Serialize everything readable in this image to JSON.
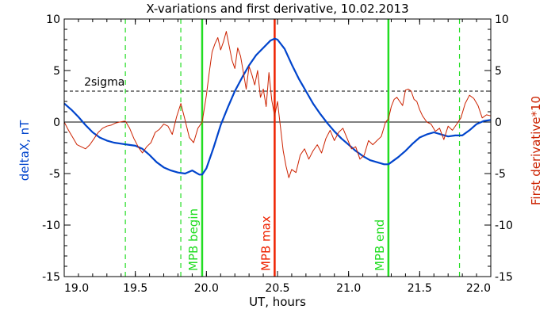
{
  "chart_data": {
    "type": "line",
    "title": "X-variations and first derivative, 10.02.2013",
    "xlabel": "UT, hours",
    "ylabel_left": "deltaX, nT",
    "ylabel_right": "First derivative*10",
    "xlim": [
      19.0,
      22.0
    ],
    "ylim": [
      -15,
      10
    ],
    "x_ticks": [
      "19.0",
      "19.5",
      "20.0",
      "20.5",
      "21.0",
      "21.5",
      "22.0"
    ],
    "x_tick_values": [
      19.0,
      19.5,
      20.0,
      20.5,
      21.0,
      21.5,
      22.0
    ],
    "y_ticks": [
      "10",
      "5",
      "0",
      "-5",
      "-10",
      "-15"
    ],
    "y_tick_values": [
      10,
      5,
      0,
      -5,
      -10,
      -15
    ],
    "colors": {
      "deltaX": "#0044cc",
      "derivative": "#cc2200",
      "mpb": "#22dd22",
      "max": "#ee2200",
      "sigma": "#000000",
      "zero": "#000000"
    },
    "sigma": {
      "value": 3.0,
      "label": "2sigma"
    },
    "zero_line": 0,
    "vlines": [
      {
        "x": 19.43,
        "style": "dashed",
        "color_key": "mpb",
        "label": ""
      },
      {
        "x": 19.82,
        "style": "dashed",
        "color_key": "mpb",
        "label": ""
      },
      {
        "x": 19.97,
        "style": "solid",
        "color_key": "mpb",
        "label": "MPB begin"
      },
      {
        "x": 20.48,
        "style": "solid",
        "color_key": "max",
        "label": "MPB max"
      },
      {
        "x": 21.28,
        "style": "solid",
        "color_key": "mpb",
        "label": "MPB end"
      },
      {
        "x": 21.78,
        "style": "dashed",
        "color_key": "mpb",
        "label": ""
      }
    ],
    "series": [
      {
        "key": "deltaX",
        "x": [
          19.0,
          19.05,
          19.1,
          19.15,
          19.2,
          19.25,
          19.3,
          19.35,
          19.4,
          19.45,
          19.5,
          19.55,
          19.6,
          19.65,
          19.7,
          19.75,
          19.8,
          19.85,
          19.9,
          19.95,
          19.97,
          20.0,
          20.05,
          20.1,
          20.15,
          20.2,
          20.25,
          20.3,
          20.35,
          20.4,
          20.45,
          20.48,
          20.5,
          20.55,
          20.6,
          20.65,
          20.7,
          20.75,
          20.8,
          20.85,
          20.9,
          20.95,
          21.0,
          21.05,
          21.1,
          21.15,
          21.2,
          21.25,
          21.28,
          21.3,
          21.35,
          21.4,
          21.45,
          21.5,
          21.55,
          21.6,
          21.65,
          21.7,
          21.75,
          21.8,
          21.85,
          21.9,
          21.95,
          22.0
        ],
        "y": [
          1.8,
          1.2,
          0.5,
          -0.3,
          -1.0,
          -1.5,
          -1.8,
          -2.0,
          -2.1,
          -2.2,
          -2.3,
          -2.6,
          -3.2,
          -3.9,
          -4.4,
          -4.7,
          -4.9,
          -5.0,
          -4.7,
          -5.1,
          -5.1,
          -4.5,
          -2.5,
          -0.3,
          1.4,
          3.0,
          4.3,
          5.5,
          6.5,
          7.2,
          7.9,
          8.1,
          8.0,
          7.1,
          5.6,
          4.2,
          3.0,
          1.8,
          0.8,
          -0.1,
          -0.9,
          -1.6,
          -2.2,
          -2.8,
          -3.3,
          -3.7,
          -3.9,
          -4.1,
          -4.1,
          -3.9,
          -3.4,
          -2.8,
          -2.1,
          -1.5,
          -1.2,
          -1.0,
          -1.2,
          -1.4,
          -1.3,
          -1.3,
          -0.8,
          -0.2,
          0.1,
          0.2
        ]
      },
      {
        "key": "derivative",
        "x": [
          19.0,
          19.03,
          19.06,
          19.09,
          19.12,
          19.15,
          19.18,
          19.21,
          19.24,
          19.27,
          19.3,
          19.33,
          19.36,
          19.39,
          19.43,
          19.46,
          19.49,
          19.52,
          19.55,
          19.58,
          19.61,
          19.64,
          19.67,
          19.7,
          19.73,
          19.76,
          19.79,
          19.82,
          19.85,
          19.88,
          19.91,
          19.94,
          19.97,
          20.0,
          20.02,
          20.04,
          20.06,
          20.08,
          20.1,
          20.12,
          20.14,
          20.16,
          20.18,
          20.2,
          20.22,
          20.24,
          20.26,
          20.28,
          20.3,
          20.32,
          20.34,
          20.36,
          20.38,
          20.4,
          20.42,
          20.44,
          20.46,
          20.48,
          20.5,
          20.52,
          20.54,
          20.56,
          20.58,
          20.6,
          20.63,
          20.66,
          20.69,
          20.72,
          20.75,
          20.78,
          20.81,
          20.84,
          20.87,
          20.9,
          20.93,
          20.96,
          20.99,
          21.02,
          21.05,
          21.08,
          21.11,
          21.14,
          21.17,
          21.2,
          21.23,
          21.26,
          21.28,
          21.3,
          21.32,
          21.34,
          21.36,
          21.38,
          21.4,
          21.42,
          21.44,
          21.46,
          21.48,
          21.5,
          21.52,
          21.55,
          21.58,
          21.61,
          21.64,
          21.67,
          21.7,
          21.73,
          21.76,
          21.79,
          21.82,
          21.85,
          21.88,
          21.91,
          21.94,
          21.97,
          22.0
        ],
        "y": [
          0.0,
          -0.8,
          -1.5,
          -2.2,
          -2.4,
          -2.6,
          -2.2,
          -1.6,
          -1.0,
          -0.6,
          -0.4,
          -0.3,
          -0.1,
          0.0,
          0.1,
          -0.6,
          -1.6,
          -2.4,
          -3.0,
          -2.4,
          -2.0,
          -1.0,
          -0.7,
          -0.2,
          -0.4,
          -1.2,
          0.5,
          1.8,
          0.2,
          -1.5,
          -2.0,
          -0.6,
          0.0,
          2.6,
          4.8,
          6.8,
          7.6,
          8.2,
          7.0,
          7.8,
          8.8,
          7.4,
          6.0,
          5.2,
          7.2,
          6.4,
          4.8,
          3.2,
          5.4,
          4.6,
          3.6,
          5.0,
          2.4,
          3.2,
          1.5,
          4.8,
          2.1,
          0.6,
          2.0,
          -0.4,
          -2.8,
          -4.3,
          -5.4,
          -4.6,
          -4.9,
          -3.2,
          -2.6,
          -3.6,
          -2.8,
          -2.2,
          -3.0,
          -1.6,
          -0.8,
          -1.8,
          -1.0,
          -0.6,
          -1.6,
          -2.6,
          -2.4,
          -3.6,
          -3.2,
          -1.8,
          -2.2,
          -1.8,
          -1.4,
          0.0,
          0.3,
          1.5,
          2.2,
          2.4,
          2.0,
          1.6,
          3.1,
          3.2,
          3.0,
          2.2,
          2.0,
          1.2,
          0.6,
          0.0,
          -0.2,
          -0.9,
          -0.6,
          -1.7,
          -0.4,
          -0.8,
          -0.2,
          0.4,
          1.8,
          2.6,
          2.3,
          1.6,
          0.4,
          0.7,
          0.6
        ]
      }
    ]
  }
}
